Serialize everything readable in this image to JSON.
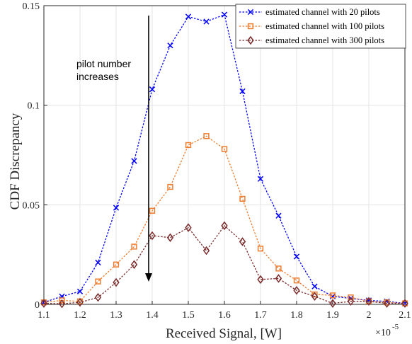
{
  "chart_data": {
    "type": "line",
    "xlabel": "Received Signal, [W]",
    "ylabel": "CDF Discrepancy",
    "x_multiplier_label": "×10",
    "x_multiplier_exp": "-5",
    "xlim": [
      1.1,
      2.1
    ],
    "ylim": [
      0,
      0.15
    ],
    "xticks": [
      "1.1",
      "1.2",
      "1.3",
      "1.4",
      "1.5",
      "1.6",
      "1.7",
      "1.8",
      "1.9",
      "2",
      "2.1"
    ],
    "yticks": [
      "0",
      "0.05",
      "0.1",
      "0.15"
    ],
    "grid": true,
    "legend_position": "top-right",
    "annotation": {
      "line1": "pilot number",
      "line2": "increases"
    },
    "x": [
      1.1,
      1.15,
      1.2,
      1.25,
      1.3,
      1.35,
      1.4,
      1.45,
      1.5,
      1.55,
      1.6,
      1.65,
      1.7,
      1.75,
      1.8,
      1.85,
      1.9,
      1.95,
      2.0,
      2.05,
      2.1
    ],
    "series": [
      {
        "name": "estimated channel with 20 pilots",
        "color": "#0000ff",
        "marker": "x",
        "values": [
          0.001,
          0.004,
          0.0065,
          0.021,
          0.0485,
          0.072,
          0.108,
          0.13,
          0.1445,
          0.142,
          0.1455,
          0.107,
          0.063,
          0.0445,
          0.024,
          0.009,
          0.004,
          0.003,
          0.002,
          0.0015,
          0.0005
        ]
      },
      {
        "name": "estimated channel with 100 pilots",
        "color": "#ed7d31",
        "marker": "square",
        "values": [
          0.001,
          0.002,
          0.0015,
          0.0115,
          0.02,
          0.029,
          0.047,
          0.059,
          0.08,
          0.0845,
          0.078,
          0.053,
          0.028,
          0.018,
          0.012,
          0.005,
          0.0045,
          0.0035,
          0.0015,
          0.001,
          0.0005
        ]
      },
      {
        "name": "estimated channel with 300 pilots",
        "color": "#7b2c2c",
        "marker": "diamond",
        "values": [
          0.0005,
          0.0003,
          0.001,
          0.0035,
          0.011,
          0.02,
          0.0345,
          0.0335,
          0.0385,
          0.027,
          0.0395,
          0.0315,
          0.0125,
          0.013,
          0.007,
          0.004,
          0.0005,
          0.0015,
          0.0015,
          0.0005,
          0.0005
        ]
      }
    ]
  }
}
